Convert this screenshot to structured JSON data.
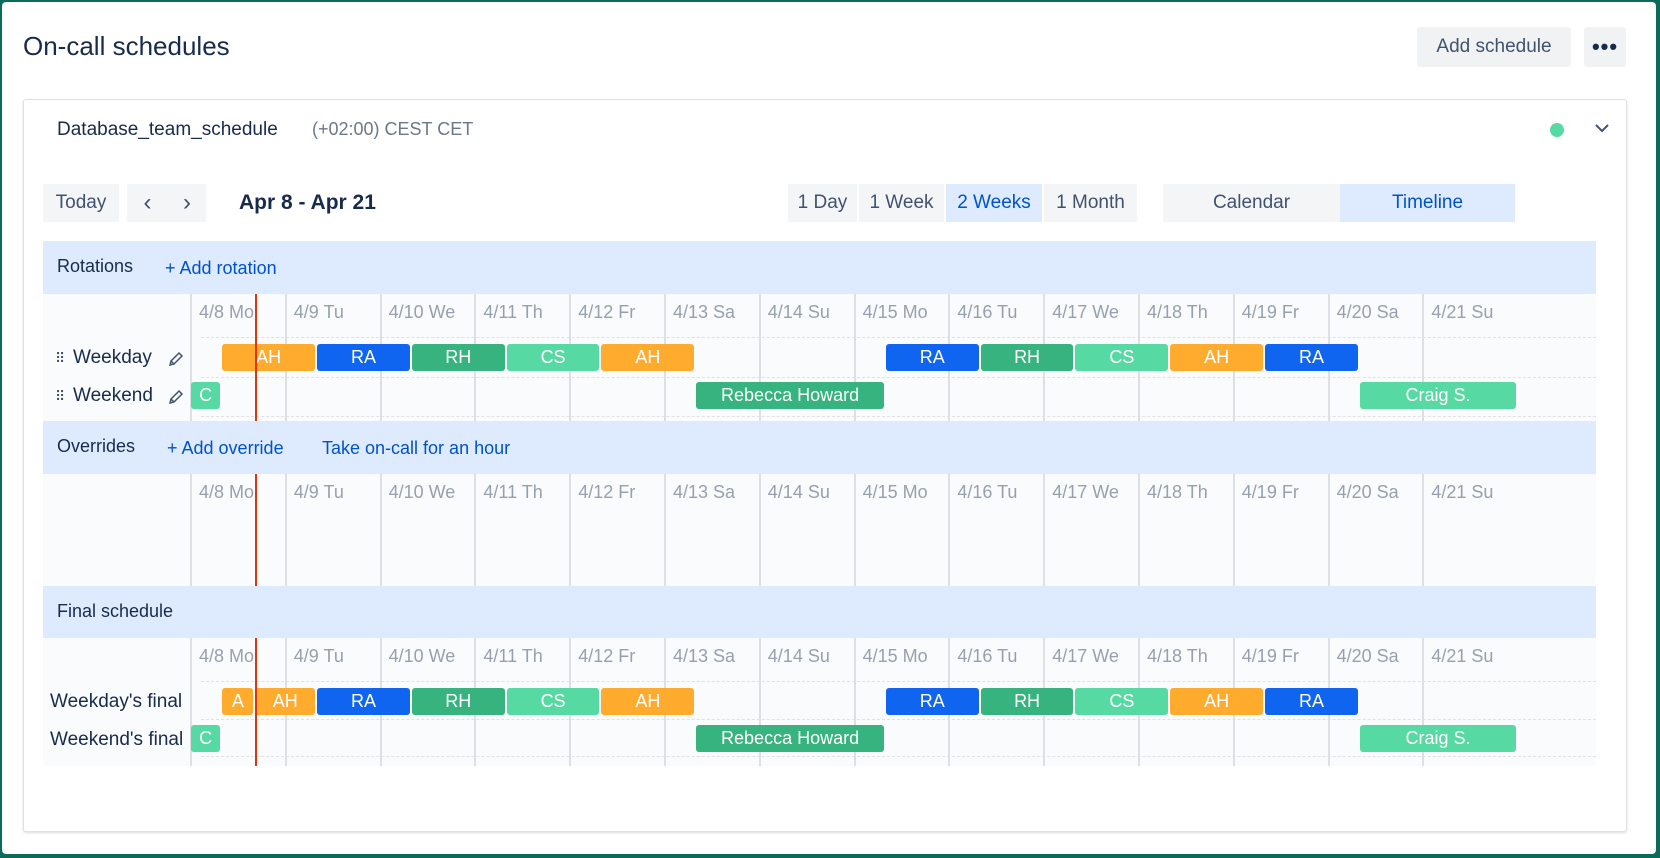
{
  "header": {
    "title": "On-call schedules",
    "add_label": "Add schedule",
    "more_label": "•••"
  },
  "schedule": {
    "name": "Database_team_schedule",
    "timezone": "(+02:00) CEST CET",
    "status_color": "#57d9a3"
  },
  "toolbar": {
    "today": "Today",
    "prev": "‹",
    "next": "›",
    "range": "Apr 8 - Apr 21",
    "spans": [
      "1 Day",
      "1 Week",
      "2 Weeks",
      "1 Month"
    ],
    "selected_span": "2 Weeks",
    "views": [
      "Calendar",
      "Timeline"
    ],
    "selected_view": "Timeline"
  },
  "days": [
    "4/8 Mo",
    "4/9 Tu",
    "4/10 We",
    "4/11 Th",
    "4/12 Fr",
    "4/13 Sa",
    "4/14 Su",
    "4/15 Mo",
    "4/16 Tu",
    "4/17 We",
    "4/18 Th",
    "4/19 Fr",
    "4/20 Sa",
    "4/21 Su"
  ],
  "colors": {
    "AH": "#ffab2e",
    "RA": "#0f65f0",
    "RH": "#36b37e",
    "CS": "#57d9a3",
    "RebeccaHoward": "#36b37e",
    "CraigS": "#57d9a3"
  },
  "rotations": {
    "title": "Rotations",
    "add_link": "+ Add rotation",
    "rows": [
      {
        "label": "Weekday"
      },
      {
        "label": "Weekend"
      }
    ]
  },
  "overrides": {
    "title": "Overrides",
    "add_link": "+ Add override",
    "take_link": "Take on-call for an hour"
  },
  "final": {
    "title": "Final schedule",
    "rows": [
      {
        "label": "Weekday's final"
      },
      {
        "label": "Weekend's final"
      }
    ]
  },
  "weekday_shifts": [
    {
      "label": "AH",
      "day": 0.33,
      "len": 1,
      "color": "#ffab2e"
    },
    {
      "label": "RA",
      "day": 1.33,
      "len": 1,
      "color": "#0f65f0"
    },
    {
      "label": "RH",
      "day": 2.33,
      "len": 1,
      "color": "#36b37e"
    },
    {
      "label": "CS",
      "day": 3.33,
      "len": 1,
      "color": "#57d9a3"
    },
    {
      "label": "AH",
      "day": 4.33,
      "len": 1,
      "color": "#ffab2e"
    },
    {
      "label": "RA",
      "day": 7.33,
      "len": 1,
      "color": "#0f65f0"
    },
    {
      "label": "RH",
      "day": 8.33,
      "len": 1,
      "color": "#36b37e"
    },
    {
      "label": "CS",
      "day": 9.33,
      "len": 1,
      "color": "#57d9a3"
    },
    {
      "label": "AH",
      "day": 10.33,
      "len": 1,
      "color": "#ffab2e"
    },
    {
      "label": "RA",
      "day": 11.33,
      "len": 1,
      "color": "#0f65f0"
    }
  ],
  "weekend_shifts": [
    {
      "label": "C",
      "day": 0,
      "len": 0.33,
      "color": "#57d9a3"
    },
    {
      "label": "Rebecca Howard",
      "day": 5.33,
      "len": 2,
      "color": "#36b37e"
    },
    {
      "label": "Craig S.",
      "day": 12.33,
      "len": 1.67,
      "color": "#57d9a3"
    }
  ],
  "final_weekday_shifts": [
    {
      "label": "A",
      "day": 0.33,
      "len": 0.35,
      "color": "#ffab2e"
    },
    {
      "label": "AH",
      "day": 0.68,
      "len": 0.65,
      "color": "#ffab2e"
    },
    {
      "label": "RA",
      "day": 1.33,
      "len": 1,
      "color": "#0f65f0"
    },
    {
      "label": "RH",
      "day": 2.33,
      "len": 1,
      "color": "#36b37e"
    },
    {
      "label": "CS",
      "day": 3.33,
      "len": 1,
      "color": "#57d9a3"
    },
    {
      "label": "AH",
      "day": 4.33,
      "len": 1,
      "color": "#ffab2e"
    },
    {
      "label": "RA",
      "day": 7.33,
      "len": 1,
      "color": "#0f65f0"
    },
    {
      "label": "RH",
      "day": 8.33,
      "len": 1,
      "color": "#36b37e"
    },
    {
      "label": "CS",
      "day": 9.33,
      "len": 1,
      "color": "#57d9a3"
    },
    {
      "label": "AH",
      "day": 10.33,
      "len": 1,
      "color": "#ffab2e"
    },
    {
      "label": "RA",
      "day": 11.33,
      "len": 1,
      "color": "#0f65f0"
    }
  ],
  "final_weekend_shifts": [
    {
      "label": "C",
      "day": 0,
      "len": 0.33,
      "color": "#57d9a3"
    },
    {
      "label": "Rebecca Howard",
      "day": 5.33,
      "len": 2,
      "color": "#36b37e"
    },
    {
      "label": "Craig S.",
      "day": 12.33,
      "len": 1.67,
      "color": "#57d9a3"
    }
  ],
  "now_day": 0.69
}
